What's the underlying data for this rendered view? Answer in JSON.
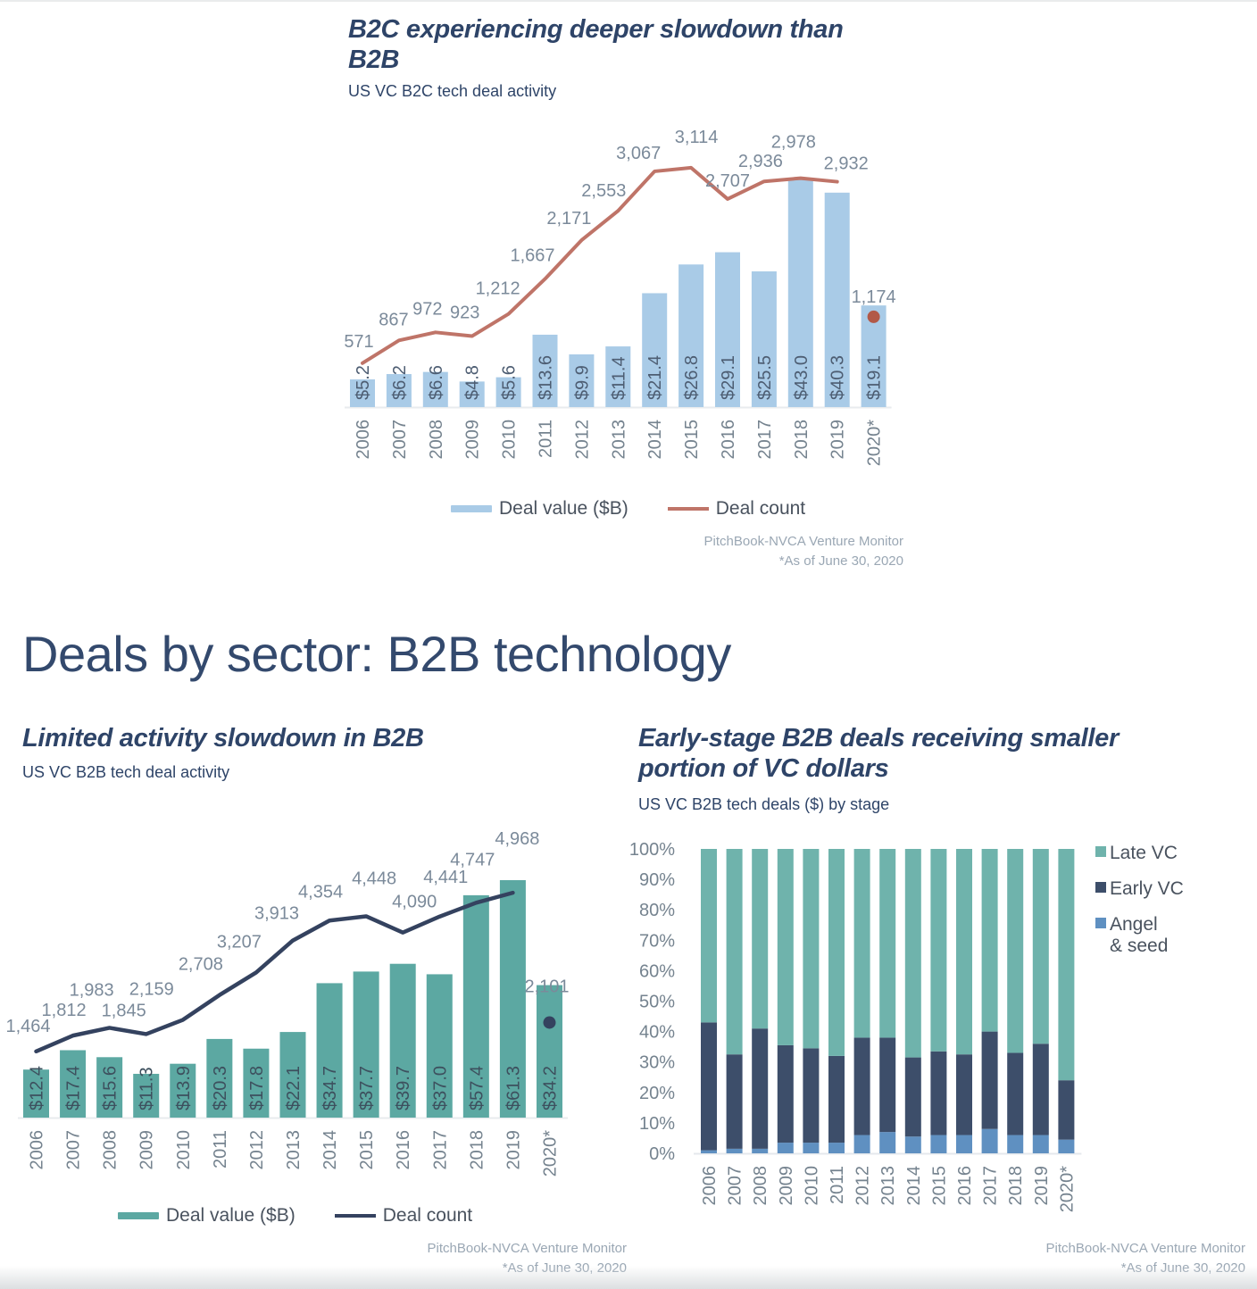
{
  "page": {
    "heading": "Deals by sector: B2B technology",
    "background": "#ffffff"
  },
  "chart_data": [
    {
      "id": "b2c-deal-activity",
      "type": "bar+line",
      "title": "B2C experiencing deeper slowdown than\nB2B",
      "subtitle": "US VC B2C tech deal activity",
      "categories": [
        "2006",
        "2007",
        "2008",
        "2009",
        "2010",
        "2011",
        "2012",
        "2013",
        "2014",
        "2015",
        "2016",
        "2017",
        "2018",
        "2019",
        "2020*"
      ],
      "series": [
        {
          "name": "Deal value ($B)",
          "type": "bar",
          "color": "#a9cbe7",
          "values": [
            5.2,
            6.2,
            6.6,
            4.8,
            5.6,
            13.6,
            9.9,
            11.4,
            21.4,
            26.8,
            29.1,
            25.5,
            43.0,
            40.3,
            19.1
          ],
          "labels": [
            "$5.2",
            "$6.2",
            "$6.6",
            "$4.8",
            "$5.6",
            "$13.6",
            "$9.9",
            "$11.4",
            "$21.4",
            "$26.8",
            "$29.1",
            "$25.5",
            "$43.0",
            "$40.3",
            "$19.1"
          ]
        },
        {
          "name": "Deal count",
          "type": "line",
          "color": "#bf7468",
          "dot_color": "#b25948",
          "last_point_is_dot": true,
          "values": [
            571,
            867,
            972,
            923,
            1212,
            1667,
            2171,
            2553,
            3067,
            3114,
            2707,
            2936,
            2978,
            2932,
            1174
          ],
          "labels": [
            "571",
            "867",
            "972",
            "923",
            "1,212",
            "1,667",
            "2,171",
            "2,553",
            "3,067",
            "3,114",
            "2,707",
            "2,936",
            "2,978",
            "2,932",
            "1,174"
          ]
        }
      ],
      "grid": false,
      "legend_position": "bottom",
      "source": [
        "PitchBook-NVCA Venture Monitor",
        "*As of June 30, 2020"
      ]
    },
    {
      "id": "b2b-deal-activity",
      "type": "bar+line",
      "title": "Limited activity slowdown in B2B",
      "subtitle": "US VC B2B tech deal activity",
      "categories": [
        "2006",
        "2007",
        "2008",
        "2009",
        "2010",
        "2011",
        "2012",
        "2013",
        "2014",
        "2015",
        "2016",
        "2017",
        "2018",
        "2019",
        "2020*"
      ],
      "series": [
        {
          "name": "Deal value ($B)",
          "type": "bar",
          "color": "#5ca8a2",
          "values": [
            12.4,
            17.4,
            15.6,
            11.3,
            13.9,
            20.3,
            17.8,
            22.1,
            34.7,
            37.7,
            39.7,
            37.0,
            57.4,
            61.3,
            34.2
          ],
          "labels": [
            "$12.4",
            "$17.4",
            "$15.6",
            "$11.3",
            "$13.9",
            "$20.3",
            "$17.8",
            "$22.1",
            "$34.7",
            "$37.7",
            "$39.7",
            "$37.0",
            "$57.4",
            "$61.3",
            "$34.2"
          ]
        },
        {
          "name": "Deal count",
          "type": "line",
          "color": "#34425f",
          "dot_color": "#34425f",
          "last_point_is_dot": true,
          "values": [
            1464,
            1812,
            1983,
            1845,
            2159,
            2708,
            3207,
            3913,
            4354,
            4448,
            4090,
            4441,
            4747,
            4968,
            2101
          ],
          "labels": [
            "1,464",
            "1,812",
            "1,983",
            "1,845",
            "2,159",
            "2,708",
            "3,207",
            "3,913",
            "4,354",
            "4,448",
            "4,090",
            "4,441",
            "4,747",
            "4,968",
            "2,101"
          ]
        }
      ],
      "grid": false,
      "legend_position": "bottom",
      "source": [
        "PitchBook-NVCA Venture Monitor",
        "*As of June 30, 2020"
      ]
    },
    {
      "id": "b2b-deals-by-stage",
      "type": "stacked-bar-100",
      "title": "Early-stage B2B deals receiving smaller\nportion of VC dollars",
      "subtitle": "US VC B2B tech deals ($) by stage",
      "categories": [
        "2006",
        "2007",
        "2008",
        "2009",
        "2010",
        "2011",
        "2012",
        "2013",
        "2014",
        "2015",
        "2016",
        "2017",
        "2018",
        "2019",
        "2020*"
      ],
      "unit": "percent of VC dollars",
      "series": [
        {
          "name": "Late VC",
          "color": "#6fb3ac",
          "values": [
            57,
            67.5,
            59,
            64.5,
            65.5,
            68,
            62,
            62,
            68.5,
            66.5,
            67.5,
            60,
            67,
            64,
            76
          ]
        },
        {
          "name": "Early VC",
          "color": "#3d4e6a",
          "values": [
            42,
            31,
            39.5,
            32,
            31,
            28.5,
            32,
            31,
            26,
            27.5,
            26.5,
            32,
            27,
            30,
            19.5
          ]
        },
        {
          "name": "Angel & seed",
          "color": "#5f90c1",
          "values": [
            1,
            1.5,
            1.5,
            3.5,
            3.5,
            3.5,
            6,
            7,
            5.5,
            6,
            6,
            8,
            6,
            6,
            4.5
          ]
        }
      ],
      "y_ticks": [
        "0%",
        "10%",
        "20%",
        "30%",
        "40%",
        "50%",
        "60%",
        "70%",
        "80%",
        "90%",
        "100%"
      ],
      "y_range": [
        0,
        100
      ],
      "grid": false,
      "legend_position": "right",
      "source": [
        "PitchBook-NVCA Venture Monitor",
        "*As of June 30, 2020"
      ]
    }
  ]
}
